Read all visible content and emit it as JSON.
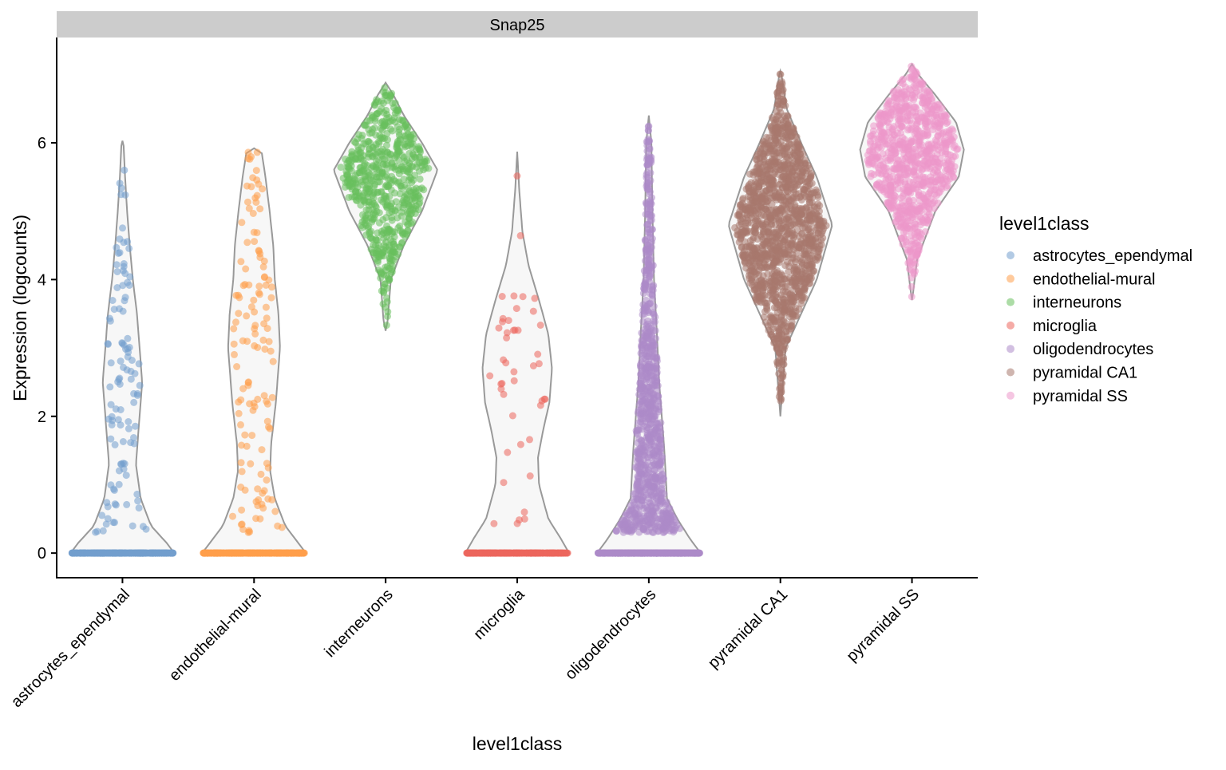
{
  "chart_data": {
    "type": "violin",
    "facet_title": "Snap25",
    "xlabel": "level1class",
    "ylabel": "Expression (logcounts)",
    "ylim": [
      -0.36,
      7.54
    ],
    "yticks": [
      0,
      2,
      4,
      6
    ],
    "grid": false,
    "legend": {
      "title": "level1class",
      "position": "right"
    },
    "categories": [
      {
        "name": "astrocytes_ependymal",
        "color": "#729ECE",
        "min": 0,
        "max": 6.03,
        "n_zero": 400,
        "n_nonzero": 110,
        "density": [
          [
            0,
            1
          ],
          [
            0.15,
            0.85
          ],
          [
            0.4,
            0.55
          ],
          [
            0.8,
            0.35
          ],
          [
            1.3,
            0.26
          ],
          [
            2,
            0.33
          ],
          [
            2.5,
            0.38
          ],
          [
            3,
            0.33
          ],
          [
            3.5,
            0.28
          ],
          [
            4,
            0.2
          ],
          [
            4.5,
            0.14
          ],
          [
            5,
            0.09
          ],
          [
            5.5,
            0.05
          ],
          [
            6,
            0.02
          ],
          [
            6.03,
            0
          ]
        ]
      },
      {
        "name": "endothelial-mural",
        "color": "#FF9E4A",
        "min": 0,
        "max": 5.92,
        "n_zero": 400,
        "n_nonzero": 130,
        "density": [
          [
            0,
            1
          ],
          [
            0.15,
            0.85
          ],
          [
            0.4,
            0.6
          ],
          [
            0.8,
            0.4
          ],
          [
            1.2,
            0.31
          ],
          [
            1.6,
            0.33
          ],
          [
            2.2,
            0.42
          ],
          [
            3,
            0.5
          ],
          [
            3.5,
            0.47
          ],
          [
            4,
            0.4
          ],
          [
            4.5,
            0.37
          ],
          [
            5,
            0.3
          ],
          [
            5.5,
            0.22
          ],
          [
            5.9,
            0.14
          ],
          [
            5.92,
            0
          ]
        ]
      },
      {
        "name": "interneurons",
        "color": "#67BF5C",
        "min": 3.25,
        "max": 6.88,
        "n_zero": 0,
        "n_nonzero": 650,
        "density": [
          [
            3.25,
            0
          ],
          [
            3.4,
            0.04
          ],
          [
            4,
            0.1
          ],
          [
            4.5,
            0.35
          ],
          [
            5,
            0.7
          ],
          [
            5.6,
            1
          ],
          [
            6,
            0.7
          ],
          [
            6.4,
            0.35
          ],
          [
            6.7,
            0.15
          ],
          [
            6.88,
            0
          ]
        ]
      },
      {
        "name": "microglia",
        "color": "#ED665D",
        "min": 0,
        "max": 5.87,
        "n_zero": 300,
        "n_nonzero": 45,
        "density": [
          [
            0,
            1
          ],
          [
            0.2,
            0.85
          ],
          [
            0.5,
            0.6
          ],
          [
            1,
            0.42
          ],
          [
            1.4,
            0.4
          ],
          [
            1.8,
            0.5
          ],
          [
            2.2,
            0.62
          ],
          [
            2.7,
            0.67
          ],
          [
            3.2,
            0.6
          ],
          [
            3.7,
            0.42
          ],
          [
            4.2,
            0.22
          ],
          [
            4.7,
            0.1
          ],
          [
            5.3,
            0.04
          ],
          [
            5.87,
            0
          ]
        ]
      },
      {
        "name": "oligodendrocytes",
        "color": "#AD8BC9",
        "min": 0,
        "max": 6.4,
        "n_zero": 600,
        "n_nonzero": 900,
        "density": [
          [
            0,
            1
          ],
          [
            0.2,
            0.8
          ],
          [
            0.5,
            0.55
          ],
          [
            0.8,
            0.35
          ],
          [
            1.5,
            0.3
          ],
          [
            2.5,
            0.2
          ],
          [
            3.3,
            0.15
          ],
          [
            4,
            0.1
          ],
          [
            5,
            0.07
          ],
          [
            6,
            0.05
          ],
          [
            6.4,
            0
          ]
        ]
      },
      {
        "name": "pyramidal CA1",
        "color": "#A8786E",
        "min": 2.0,
        "max": 7.05,
        "n_zero": 0,
        "n_nonzero": 1500,
        "density": [
          [
            2,
            0
          ],
          [
            2.5,
            0.05
          ],
          [
            3,
            0.1
          ],
          [
            3.5,
            0.4
          ],
          [
            4,
            0.7
          ],
          [
            4.8,
            1
          ],
          [
            5.5,
            0.7
          ],
          [
            6,
            0.4
          ],
          [
            6.5,
            0.12
          ],
          [
            7,
            0.02
          ],
          [
            7.05,
            0
          ]
        ]
      },
      {
        "name": "pyramidal SS",
        "color": "#ED97CA",
        "min": 3.7,
        "max": 7.15,
        "n_zero": 0,
        "n_nonzero": 900,
        "density": [
          [
            3.7,
            0
          ],
          [
            3.8,
            0.02
          ],
          [
            4.3,
            0.1
          ],
          [
            5,
            0.45
          ],
          [
            5.5,
            0.9
          ],
          [
            5.9,
            1
          ],
          [
            6.3,
            0.85
          ],
          [
            6.7,
            0.45
          ],
          [
            7,
            0.12
          ],
          [
            7.15,
            0
          ]
        ]
      }
    ]
  }
}
